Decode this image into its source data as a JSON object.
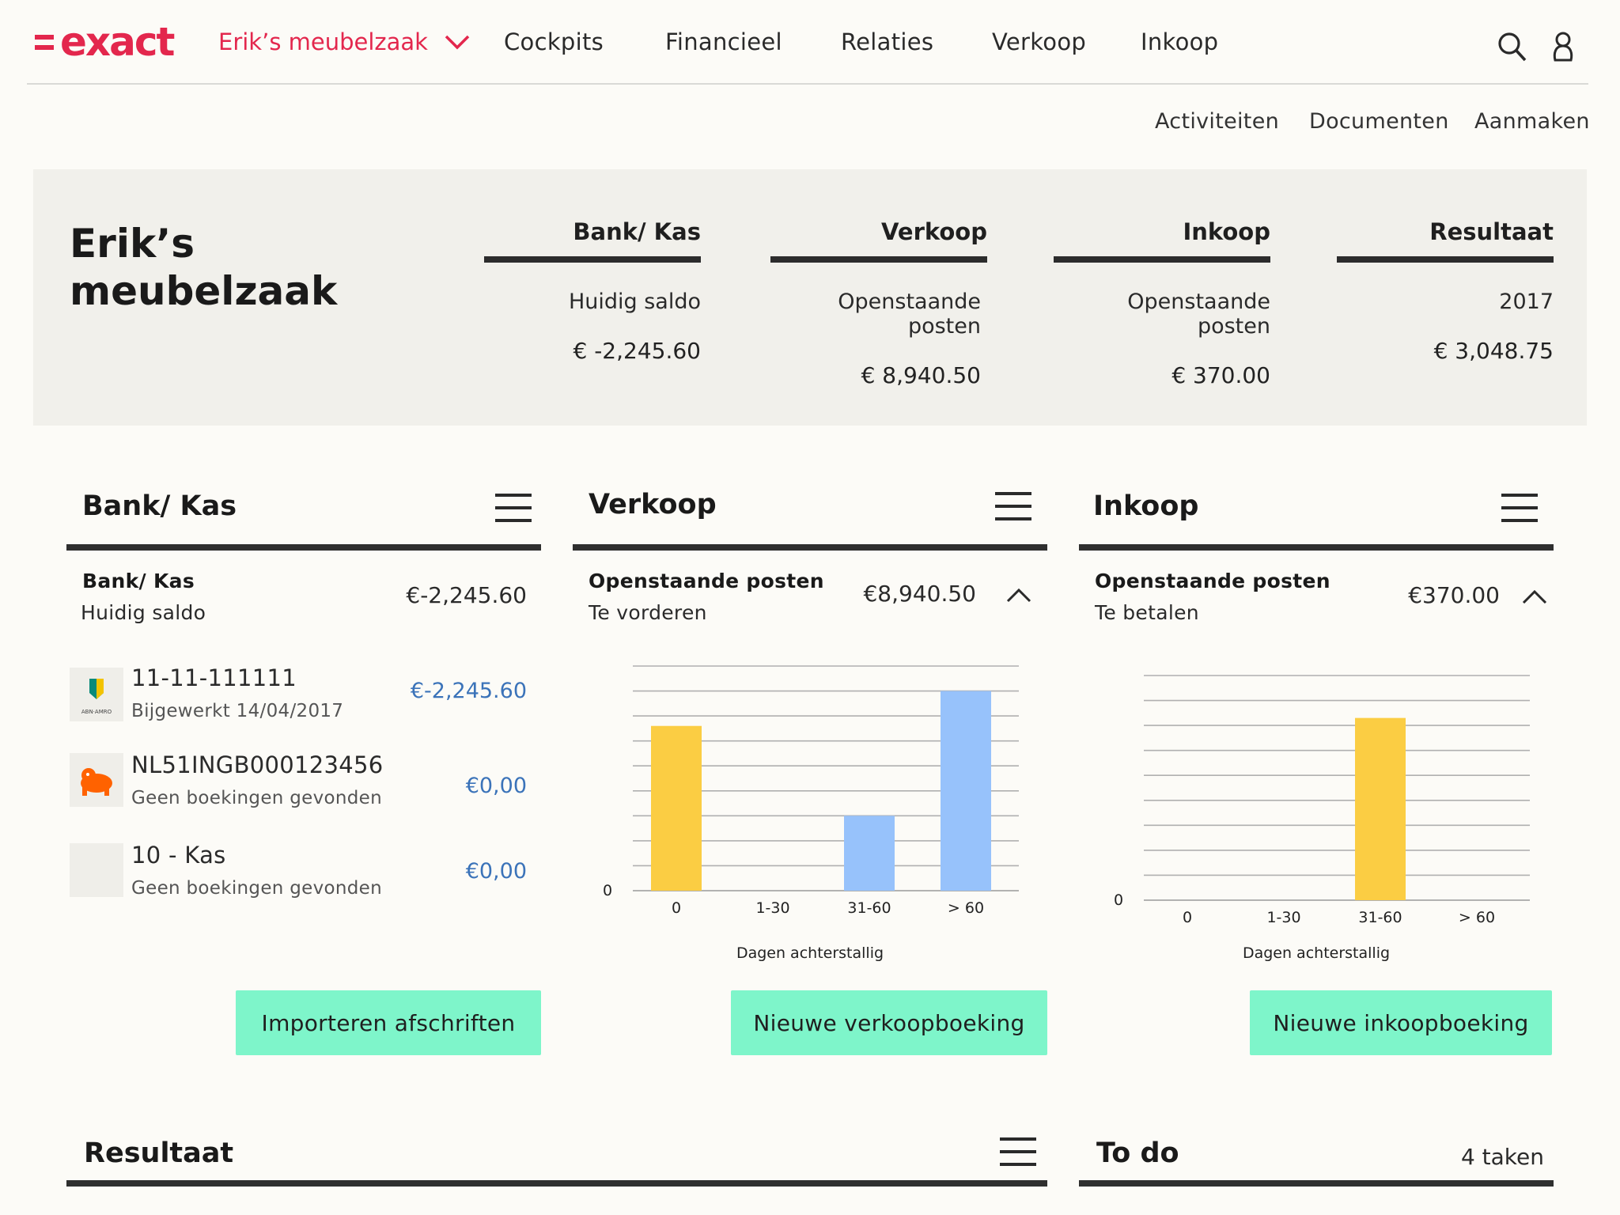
{
  "nav": {
    "logo": "exact",
    "company": "Erik’s meubelzaak",
    "items": [
      "Cockpits",
      "Financieel",
      "Relaties",
      "Verkoop",
      "Inkoop"
    ]
  },
  "subnav": [
    "Activiteiten",
    "Documenten",
    "Aanmaken"
  ],
  "summary": {
    "title_line1": "Erik’s",
    "title_line2": "meubelzaak",
    "kpis": [
      {
        "head": "Bank/ Kas",
        "label": "Huidig saldo",
        "value": "€ -2,245.60"
      },
      {
        "head": "Verkoop",
        "label": "Openstaande posten",
        "value": "€ 8,940.50"
      },
      {
        "head": "Inkoop",
        "label": "Openstaande posten",
        "value": "€ 370.00"
      },
      {
        "head": "Resultaat",
        "label": "2017",
        "value": "€ 3,048.75"
      }
    ]
  },
  "bank": {
    "title": "Bank/ Kas",
    "head": "Bank/ Kas",
    "sub": "Huidig saldo",
    "amount": "€-2,245.60",
    "accounts": [
      {
        "number": "11-11-111111",
        "status": "Bijgewerkt 14/04/2017",
        "amount": "€-2,245.60",
        "logo": "abn-amro-logo",
        "logo_text": "ABN·AMRO"
      },
      {
        "number": "NL51INGB000123456",
        "status": "Geen boekingen gevonden",
        "amount": "€0,00",
        "logo": "ing-lion-logo"
      },
      {
        "number": "10 - Kas",
        "status": "Geen boekingen gevonden",
        "amount": "€0,00",
        "logo": "blank-logo"
      }
    ],
    "button": "Importeren afschriften"
  },
  "verkoop": {
    "title": "Verkoop",
    "head": "Openstaande posten",
    "sub": "Te vorderen",
    "amount": "€8,940.50",
    "button": "Nieuwe verkoopboeking"
  },
  "inkoop": {
    "title": "Inkoop",
    "head": "Openstaande posten",
    "sub": "Te betalen",
    "amount": "€370.00",
    "button": "Nieuwe inkoopboeking"
  },
  "resultaat": {
    "title": "Resultaat"
  },
  "todo": {
    "title": "To do",
    "count": "4 taken"
  },
  "colors": {
    "accent": "#e3274d",
    "button": "#7ef5ca",
    "bar_yellow": "#fbcd43",
    "bar_blue": "#97c2fb",
    "link_blue": "#3b73b9"
  },
  "chart_data": [
    {
      "type": "bar",
      "categories": [
        "0",
        "1-30",
        "31-60",
        "> 60"
      ],
      "values": [
        66,
        0,
        30,
        80
      ],
      "colors": [
        "#fbcd43",
        "#fbcd43",
        "#97c2fb",
        "#97c2fb"
      ],
      "ylim": [
        0,
        90
      ],
      "ytick_labels": [
        "0"
      ],
      "xlabel": "Dagen achterstallig",
      "grid": true
    },
    {
      "type": "bar",
      "categories": [
        "0",
        "1-30",
        "31-60",
        "> 60"
      ],
      "values": [
        0,
        0,
        73,
        0
      ],
      "colors": [
        "#fbcd43",
        "#fbcd43",
        "#fbcd43",
        "#fbcd43"
      ],
      "ylim": [
        0,
        90
      ],
      "ytick_labels": [
        "0"
      ],
      "xlabel": "Dagen achterstallig",
      "grid": true
    }
  ]
}
